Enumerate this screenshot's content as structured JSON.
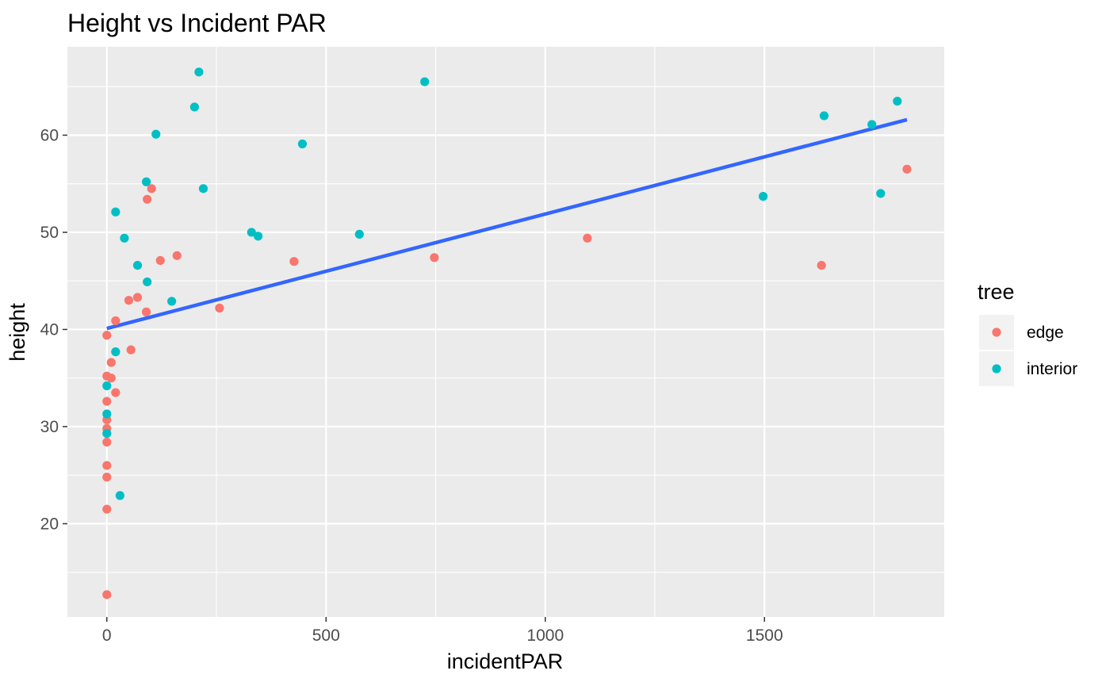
{
  "chart_data": {
    "type": "scatter",
    "title": "Height vs Incident PAR",
    "xlabel": "incidentPAR",
    "ylabel": "height",
    "xlim": [
      -90,
      1910
    ],
    "ylim": [
      10.4,
      69.1
    ],
    "x_ticks": [
      0,
      500,
      1000,
      1500
    ],
    "x_tick_labels": [
      "0",
      "500",
      "1000",
      "1500"
    ],
    "y_ticks": [
      20,
      30,
      40,
      50,
      60
    ],
    "y_tick_labels": [
      "20",
      "30",
      "40",
      "50",
      "60"
    ],
    "grid": true,
    "legend": {
      "title": "tree",
      "position": "right",
      "entries": [
        {
          "label": "edge",
          "color": "#F8766D"
        },
        {
          "label": "interior",
          "color": "#00BFC4"
        }
      ]
    },
    "series": [
      {
        "name": "edge",
        "color": "#F8766D",
        "points": [
          [
            0,
            12.7
          ],
          [
            0,
            21.5
          ],
          [
            0,
            24.8
          ],
          [
            0,
            26.0
          ],
          [
            0,
            28.4
          ],
          [
            0,
            29.8
          ],
          [
            0,
            30.7
          ],
          [
            0,
            32.6
          ],
          [
            0,
            35.2
          ],
          [
            0,
            39.4
          ],
          [
            10,
            36.6
          ],
          [
            10,
            35.0
          ],
          [
            20,
            33.5
          ],
          [
            20,
            40.9
          ],
          [
            50,
            43.0
          ],
          [
            55,
            37.9
          ],
          [
            70,
            43.3
          ],
          [
            90,
            41.8
          ],
          [
            92,
            53.4
          ],
          [
            102,
            54.5
          ],
          [
            122,
            47.1
          ],
          [
            160,
            47.6
          ],
          [
            257,
            42.2
          ],
          [
            427,
            47.0
          ],
          [
            747,
            47.4
          ],
          [
            1096,
            49.4
          ],
          [
            1630,
            46.6
          ],
          [
            1825,
            56.5
          ]
        ]
      },
      {
        "name": "interior",
        "color": "#00BFC4",
        "points": [
          [
            0,
            29.3
          ],
          [
            0,
            31.3
          ],
          [
            0,
            34.2
          ],
          [
            20,
            37.7
          ],
          [
            20,
            52.1
          ],
          [
            30,
            22.9
          ],
          [
            40,
            49.4
          ],
          [
            70,
            46.6
          ],
          [
            90,
            55.2
          ],
          [
            92,
            44.9
          ],
          [
            112,
            60.1
          ],
          [
            148,
            42.9
          ],
          [
            200,
            62.9
          ],
          [
            210,
            66.5
          ],
          [
            220,
            54.5
          ],
          [
            330,
            50.0
          ],
          [
            345,
            49.6
          ],
          [
            446,
            59.1
          ],
          [
            576,
            49.8
          ],
          [
            725,
            65.5
          ],
          [
            1497,
            53.7
          ],
          [
            1636,
            62.0
          ],
          [
            1745,
            61.1
          ],
          [
            1765,
            54.0
          ],
          [
            1803,
            63.5
          ]
        ]
      }
    ],
    "trend_line": {
      "type": "linear",
      "color": "#3366FF",
      "x": [
        0,
        1825
      ],
      "y": [
        40.1,
        61.6
      ]
    }
  }
}
